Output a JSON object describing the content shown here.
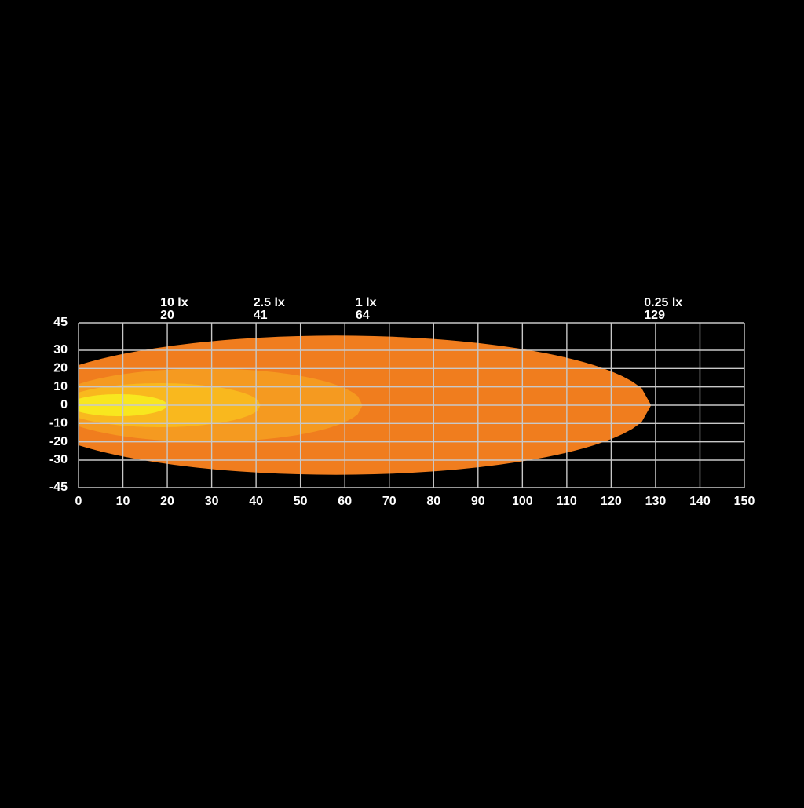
{
  "chart_data": {
    "type": "isolux",
    "series": [
      {
        "name": "10 lx",
        "color": "#f8e71f",
        "reach": 20,
        "half_width": 6
      },
      {
        "name": "2.5 lx",
        "color": "#f9b81e",
        "reach": 41,
        "half_width": 12
      },
      {
        "name": "1 lx",
        "color": "#f59a20",
        "reach": 64,
        "half_width": 20
      },
      {
        "name": "0.25 lx",
        "color": "#f07d1e",
        "reach": 129,
        "half_width": 38
      }
    ],
    "xlim": [
      0,
      150
    ],
    "xticks": [
      0,
      10,
      20,
      30,
      40,
      50,
      60,
      70,
      80,
      90,
      100,
      110,
      120,
      130,
      140,
      150
    ],
    "ylim": [
      -45,
      45
    ],
    "yticks": [
      -45,
      -30,
      -20,
      -10,
      0,
      10,
      20,
      30,
      45
    ],
    "grid": true
  }
}
